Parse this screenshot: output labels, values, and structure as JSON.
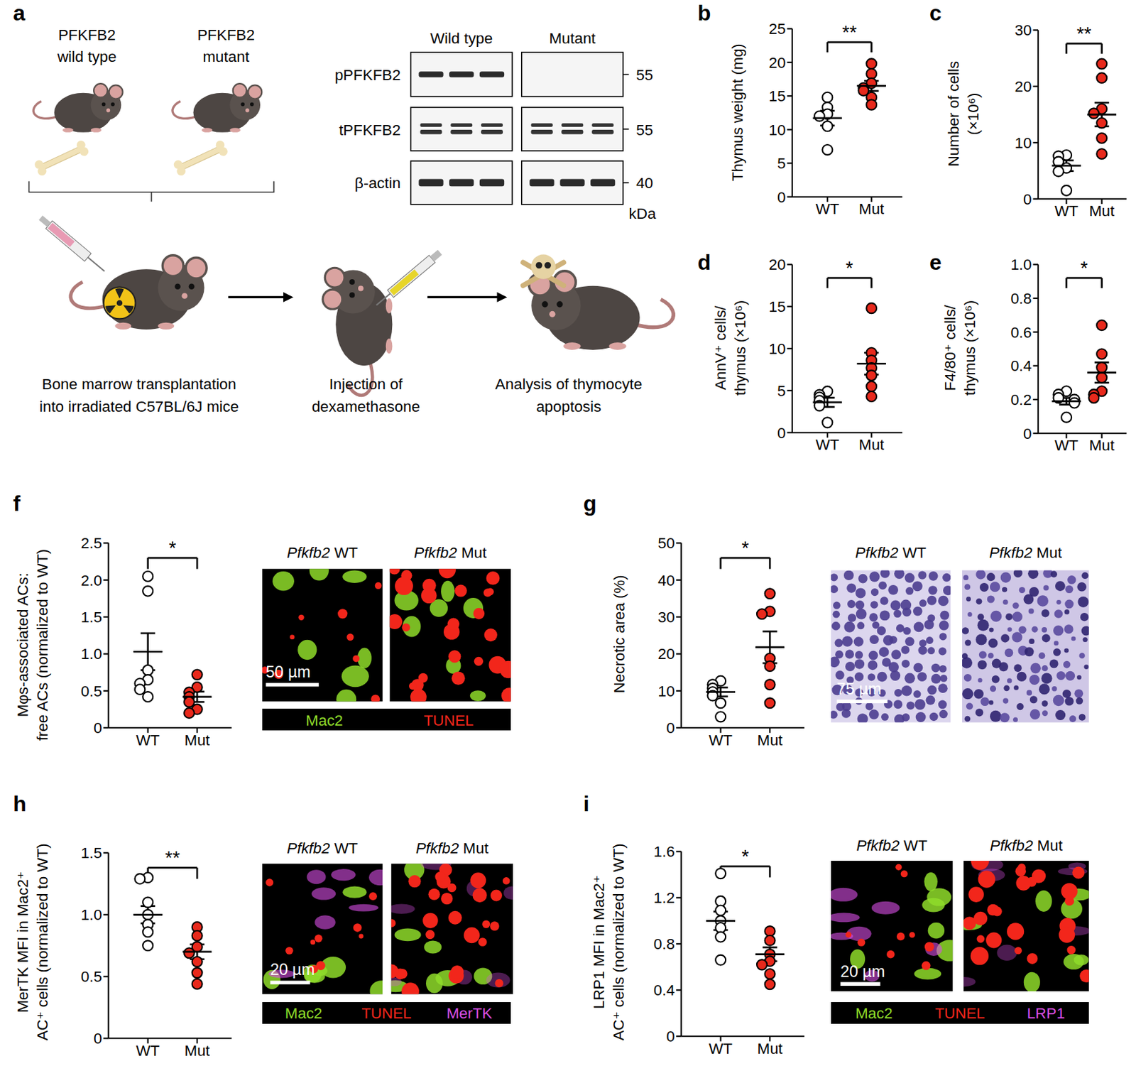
{
  "chart_data": [
    {
      "panel": "b",
      "type": "scatter",
      "ylabel": [
        "Thymus weight (mg)"
      ],
      "categories": [
        "WT",
        "Mut"
      ],
      "values": [
        [
          14.8,
          13.3,
          12.3,
          12.0,
          10.5,
          7.0
        ],
        [
          19.8,
          18.3,
          16.9,
          16.2,
          15.8,
          14.8,
          13.7
        ]
      ],
      "mean": [
        11.7,
        16.5
      ],
      "sem": [
        1.1,
        0.75
      ],
      "colors": [
        "#ffffff",
        "#e8291c"
      ],
      "ylim": [
        0,
        25
      ],
      "yticks": [
        0,
        5,
        10,
        15,
        20,
        25
      ],
      "significance": "**"
    },
    {
      "panel": "c",
      "type": "scatter",
      "ylabel": [
        "Number of cells",
        "(×10⁶)"
      ],
      "categories": [
        "WT",
        "Mut"
      ],
      "values": [
        [
          7.8,
          7.6,
          6.6,
          5.5,
          4.9,
          1.5
        ],
        [
          24.0,
          21.5,
          16.0,
          15.2,
          13.5,
          10.8,
          8.0
        ]
      ],
      "mean": [
        5.9,
        15.0
      ],
      "sem": [
        0.95,
        2.1
      ],
      "colors": [
        "#ffffff",
        "#e8291c"
      ],
      "ylim": [
        0,
        30
      ],
      "yticks": [
        0,
        10,
        20,
        30
      ],
      "significance": "**"
    },
    {
      "panel": "d",
      "type": "scatter",
      "ylabel": [
        "AnnV⁺ cells/",
        "thymus (×10⁶)"
      ],
      "categories": [
        "WT",
        "Mut"
      ],
      "values": [
        [
          4.9,
          4.5,
          4.2,
          3.8,
          3.2,
          1.2
        ],
        [
          14.8,
          9.5,
          8.6,
          7.7,
          6.8,
          5.5,
          4.3
        ]
      ],
      "mean": [
        3.6,
        8.2
      ],
      "sem": [
        0.55,
        1.3
      ],
      "colors": [
        "#ffffff",
        "#e8291c"
      ],
      "ylim": [
        0,
        20
      ],
      "yticks": [
        0,
        5,
        10,
        15,
        20
      ],
      "significance": "*"
    },
    {
      "panel": "e",
      "type": "scatter",
      "ylabel": [
        "F4/80⁺ cells/",
        "thymus (×10⁶)"
      ],
      "categories": [
        "WT",
        "Mut"
      ],
      "values": [
        [
          0.25,
          0.23,
          0.21,
          0.2,
          0.18,
          0.095
        ],
        [
          0.64,
          0.47,
          0.39,
          0.33,
          0.25,
          0.23,
          0.21
        ]
      ],
      "mean": [
        0.19,
        0.36
      ],
      "sem": [
        0.02,
        0.06
      ],
      "colors": [
        "#ffffff",
        "#e8291c"
      ],
      "ylim": [
        0,
        1
      ],
      "yticks": [
        0,
        0.2,
        0.4,
        0.6,
        0.8,
        {
          "value": 1,
          "label": "1.0"
        }
      ],
      "significance": "*"
    },
    {
      "panel": "f",
      "type": "scatter",
      "ylabel": [
        "Mφs-associated ACs:",
        "free ACs (normalized to WT)"
      ],
      "categories": [
        "WT",
        "Mut"
      ],
      "values": [
        [
          2.05,
          1.85,
          0.78,
          0.65,
          0.6,
          0.52,
          0.42
        ],
        [
          0.72,
          0.55,
          0.48,
          0.42,
          0.35,
          0.25,
          0.2
        ]
      ],
      "mean": [
        1.03,
        0.42
      ],
      "sem": [
        0.25,
        0.07
      ],
      "colors": [
        "#ffffff",
        "#e8291c"
      ],
      "ylim": [
        0,
        2.5
      ],
      "yticks": [
        0,
        0.5,
        {
          "value": 1,
          "label": "1.0"
        },
        1.5,
        {
          "value": 2,
          "label": "2.0"
        },
        2.5
      ],
      "significance": "*"
    },
    {
      "panel": "g",
      "type": "scatter",
      "ylabel": [
        "Necrotic area (%)"
      ],
      "categories": [
        "WT",
        "Mut"
      ],
      "values": [
        [
          12.7,
          11.7,
          10.7,
          9.7,
          8.7,
          6.7,
          3.0
        ],
        [
          36.3,
          31.5,
          30.8,
          18.8,
          16.7,
          11.7,
          6.7
        ]
      ],
      "mean": [
        9.7,
        21.8
      ],
      "sem": [
        1.2,
        4.3
      ],
      "colors": [
        "#ffffff",
        "#e8291c"
      ],
      "ylim": [
        0,
        50
      ],
      "yticks": [
        0,
        10,
        20,
        30,
        40,
        50
      ],
      "significance": "*"
    },
    {
      "panel": "h",
      "type": "scatter",
      "ylabel": [
        "MerTK MFI in Mac2⁺",
        "AC⁺ cells (normalized to WT)"
      ],
      "categories": [
        "WT",
        "Mut"
      ],
      "values": [
        [
          1.3,
          1.29,
          1.1,
          1.0,
          0.92,
          0.86,
          0.75
        ],
        [
          0.9,
          0.83,
          0.74,
          0.69,
          0.62,
          0.53,
          0.44
        ]
      ],
      "mean": [
        1.0,
        0.7
      ],
      "sem": [
        0.07,
        0.06
      ],
      "colors": [
        "#ffffff",
        "#e8291c"
      ],
      "ylim": [
        0,
        1.5
      ],
      "yticks": [
        0,
        0.5,
        {
          "value": 1,
          "label": "1.0"
        },
        1.5
      ],
      "significance": "**"
    },
    {
      "panel": "i",
      "type": "scatter",
      "ylabel": [
        "LRP1 MFI in Mac2⁺",
        "AC⁺ cells (normalized to WT)"
      ],
      "categories": [
        "WT",
        "Mut"
      ],
      "values": [
        [
          1.41,
          1.17,
          1.09,
          1.0,
          0.94,
          0.86,
          0.66
        ],
        [
          0.91,
          0.83,
          0.71,
          0.65,
          0.62,
          0.54,
          0.45
        ]
      ],
      "mean": [
        1.0,
        0.71
      ],
      "sem": [
        0.08,
        0.06
      ],
      "colors": [
        "#ffffff",
        "#e8291c"
      ],
      "ylim": [
        0,
        1.6
      ],
      "yticks": [
        0,
        0.4,
        0.8,
        1.2,
        1.6
      ],
      "significance": "*"
    }
  ],
  "panel_a": {
    "panel": "a",
    "mice": [
      {
        "lines": [
          "PFKFB2",
          "wild type"
        ]
      },
      {
        "lines": [
          "PFKFB2",
          "mutant"
        ]
      }
    ],
    "steps": [
      {
        "lines": [
          "Bone marrow transplantation",
          "into irradiated C57BL/6J mice"
        ]
      },
      {
        "lines": [
          "Injection of",
          "dexamethasone"
        ]
      },
      {
        "lines": [
          "Analysis of thymocyte",
          "apoptosis"
        ]
      }
    ],
    "blot": {
      "groups": [
        "Wild type",
        "Mutant"
      ],
      "rows": [
        {
          "label": "pPFKFB2",
          "marker": 55,
          "detected": [
            true,
            false
          ]
        },
        {
          "label": "tPFKFB2",
          "marker": 55,
          "detected": [
            true,
            true
          ]
        },
        {
          "label": "β-actin",
          "marker": 40,
          "detected": [
            true,
            true
          ]
        }
      ],
      "unit": "kDa"
    }
  },
  "images": [
    {
      "panel": "f",
      "kind": "fluorescence",
      "titles": [
        "Pfkfb2 WT",
        "Pfkfb2 Mut"
      ],
      "scale_bar": "50 µm",
      "stains": [
        {
          "name": "Mac2",
          "color": "#8fdc2a"
        },
        {
          "name": "TUNEL",
          "color": "#f2261b"
        }
      ]
    },
    {
      "panel": "g",
      "kind": "histology",
      "titles": [
        "Pfkfb2 WT",
        "Pfkfb2 Mut"
      ],
      "scale_bar": "75 µm",
      "stains": []
    },
    {
      "panel": "h",
      "kind": "fluorescence",
      "titles": [
        "Pfkfb2 WT",
        "Pfkfb2 Mut"
      ],
      "scale_bar": "20 µm",
      "stains": [
        {
          "name": "Mac2",
          "color": "#8fdc2a"
        },
        {
          "name": "TUNEL",
          "color": "#f2261b"
        },
        {
          "name": "MerTK",
          "color": "#d94fe6"
        }
      ]
    },
    {
      "panel": "i",
      "kind": "fluorescence",
      "titles": [
        "Pfkfb2 WT",
        "Pfkfb2 Mut"
      ],
      "scale_bar": "20 µm",
      "stains": [
        {
          "name": "Mac2",
          "color": "#8fdc2a"
        },
        {
          "name": "TUNEL",
          "color": "#f2261b"
        },
        {
          "name": "LRP1",
          "color": "#d94fe6"
        }
      ]
    }
  ]
}
